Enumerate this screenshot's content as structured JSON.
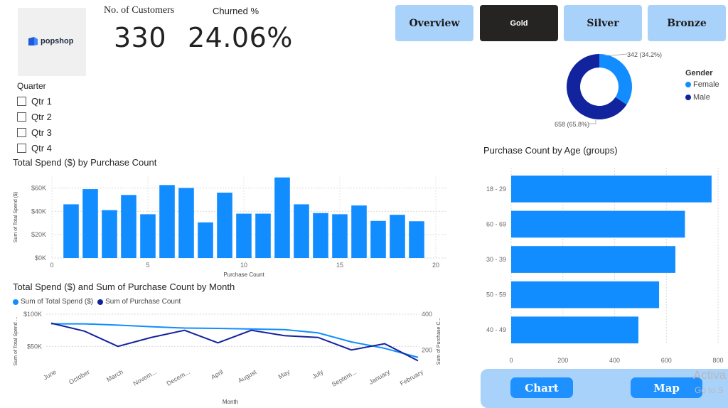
{
  "logo": {
    "text": "popshop"
  },
  "kpis": {
    "customers": {
      "label": "No. of Customers",
      "value": "330"
    },
    "churn": {
      "label": "Churned %",
      "value": "24.06%"
    }
  },
  "nav": [
    {
      "label": "Overview",
      "active": false
    },
    {
      "label": "Gold",
      "active": true
    },
    {
      "label": "Silver",
      "active": false
    },
    {
      "label": "Bronze",
      "active": false
    }
  ],
  "slicer": {
    "title": "Quarter",
    "items": [
      "Qtr 1",
      "Qtr 2",
      "Qtr 3",
      "Qtr 4"
    ]
  },
  "bottom_nav": {
    "chart_label": "Chart",
    "map_label": "Map"
  },
  "watermark": {
    "line1": "Activa",
    "line2": "Go to S"
  },
  "colors": {
    "accent": "#118dff",
    "dark_series": "#12239e",
    "nav_button": "#a9d2fb",
    "nav_active": "#252423"
  },
  "chart_data": [
    {
      "type": "pie",
      "subtype": "donut",
      "legend_title": "Gender",
      "categories": [
        "Female",
        "Male"
      ],
      "values": [
        342,
        658
      ],
      "percent": [
        34.2,
        65.8
      ],
      "data_labels": [
        "342 (34.2%)",
        "658 (65.8%)"
      ],
      "colors": [
        "#118dff",
        "#12239e"
      ],
      "legend_position": "right"
    },
    {
      "type": "bar",
      "title": "Total Spend ($) by Purchase Count",
      "xlabel": "Purchase Count",
      "ylabel": "Sum of Total Spend ($)",
      "x": [
        1,
        2,
        3,
        4,
        5,
        6,
        7,
        8,
        9,
        10,
        11,
        12,
        13,
        14,
        15,
        16,
        17,
        18,
        19
      ],
      "values": [
        46000,
        59000,
        41000,
        54000,
        37500,
        62500,
        60000,
        30500,
        56000,
        38000,
        38000,
        69000,
        46000,
        38500,
        37500,
        45000,
        31800,
        37000,
        31500
      ],
      "xticks": [
        "0",
        "5",
        "10",
        "15",
        "20"
      ],
      "yticks": [
        "$0K",
        "$20K",
        "$40K",
        "$60K"
      ],
      "xlim": [
        0,
        20
      ],
      "ylim": [
        0,
        70000
      ],
      "grid": true,
      "color": "#118dff"
    },
    {
      "type": "line",
      "title": "Total Spend ($) and Sum of Purchase Count by Month",
      "xlabel": "Month",
      "ylabel": "Sum of Total Spend ...",
      "y2label": "Sum of Purchase C...",
      "categories": [
        "June",
        "October",
        "March",
        "Novem...",
        "Decem...",
        "April",
        "August",
        "May",
        "July",
        "Septem...",
        "January",
        "February"
      ],
      "series": [
        {
          "name": "Sum of Total Spend ($)",
          "axis": "left",
          "values": [
            85000,
            85000,
            83000,
            80500,
            78500,
            78000,
            77000,
            76000,
            71000,
            57000,
            47000,
            33000
          ],
          "color": "#118dff"
        },
        {
          "name": "Sum of Purchase Count",
          "axis": "right",
          "values": [
            350,
            305,
            220,
            270,
            310,
            240,
            310,
            280,
            270,
            200,
            235,
            140
          ],
          "color": "#12239e"
        }
      ],
      "yticks": [
        "$50K",
        "$100K"
      ],
      "y2ticks": [
        "200",
        "400"
      ],
      "ylim": [
        25000,
        100000
      ],
      "y2lim": [
        130,
        400
      ],
      "grid": true,
      "legend_position": "top-left"
    },
    {
      "type": "bar",
      "orientation": "horizontal",
      "title": "Purchase Count by Age (groups)",
      "categories": [
        "18 - 29",
        "60 - 69",
        "30 - 39",
        "50 - 59",
        "40 - 49"
      ],
      "values": [
        775,
        672,
        635,
        572,
        492
      ],
      "xticks": [
        "0",
        "200",
        "400",
        "600",
        "800"
      ],
      "xlim": [
        0,
        800
      ],
      "grid": true,
      "color": "#118dff"
    }
  ]
}
